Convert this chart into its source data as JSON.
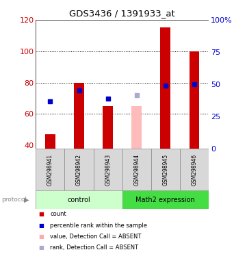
{
  "title": "GDS3436 / 1391933_at",
  "samples": [
    "GSM298941",
    "GSM298942",
    "GSM298943",
    "GSM298944",
    "GSM298945",
    "GSM298946"
  ],
  "bar_values": [
    47,
    80,
    65,
    null,
    115,
    100
  ],
  "absent_bar_values": [
    null,
    null,
    null,
    65,
    null,
    null
  ],
  "blue_dot_values": [
    68,
    75,
    70,
    null,
    78,
    79
  ],
  "absent_rank_values": [
    null,
    null,
    null,
    72,
    null,
    null
  ],
  "ylim_left": [
    38,
    120
  ],
  "ylim_right": [
    0,
    100
  ],
  "right_ticks": [
    0,
    25,
    50,
    75,
    100
  ],
  "right_tick_labels": [
    "0",
    "25",
    "50",
    "75",
    "100%"
  ],
  "left_ticks": [
    40,
    60,
    80,
    100,
    120
  ],
  "dotted_lines": [
    60,
    80,
    100
  ],
  "protocol_groups": [
    {
      "label": "control",
      "start": 0,
      "end": 3,
      "color": "#ccffcc"
    },
    {
      "label": "Math2 expression",
      "start": 3,
      "end": 6,
      "color": "#44dd44"
    }
  ],
  "legend_items": [
    {
      "color": "#cc0000",
      "label": "count"
    },
    {
      "color": "#0000cc",
      "label": "percentile rank within the sample"
    },
    {
      "color": "#ffaaaa",
      "label": "value, Detection Call = ABSENT"
    },
    {
      "color": "#aaaacc",
      "label": "rank, Detection Call = ABSENT"
    }
  ],
  "bar_color": "#cc0000",
  "absent_bar_color": "#ffbbbb",
  "blue_dot_color": "#0000cc",
  "absent_rank_color": "#aaaacc",
  "left_axis_color": "#cc0000",
  "right_axis_color": "#0000cc",
  "sample_box_color": "#d8d8d8",
  "background_color": "#ffffff",
  "bar_width": 0.35
}
